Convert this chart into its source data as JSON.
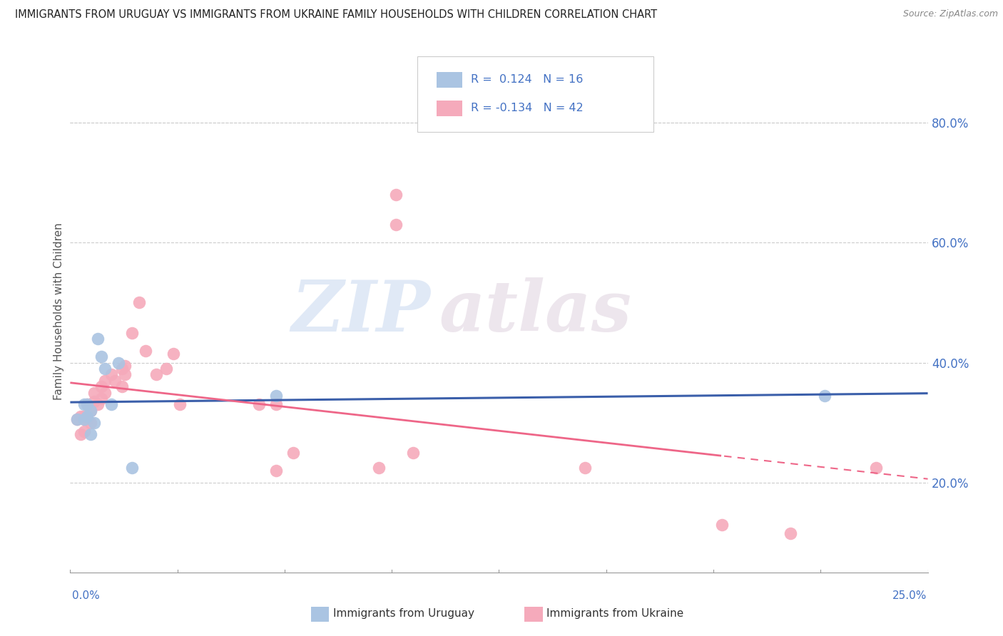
{
  "title": "IMMIGRANTS FROM URUGUAY VS IMMIGRANTS FROM UKRAINE FAMILY HOUSEHOLDS WITH CHILDREN CORRELATION CHART",
  "source": "Source: ZipAtlas.com",
  "ylabel": "Family Households with Children",
  "ytick_values": [
    0.2,
    0.4,
    0.6,
    0.8
  ],
  "xlim": [
    0.0,
    0.25
  ],
  "ylim": [
    0.05,
    0.92
  ],
  "watermark_zip": "ZIP",
  "watermark_atlas": "atlas",
  "legend_R_uruguay": "0.124",
  "legend_N_uruguay": "16",
  "legend_R_ukraine": "-0.134",
  "legend_N_ukraine": "42",
  "uruguay_color": "#aac4e2",
  "ukraine_color": "#f5aabb",
  "uruguay_line_color": "#3b5faa",
  "ukraine_line_color": "#ee6688",
  "title_color": "#222222",
  "axis_label_color": "#4472c4",
  "source_color": "#888888",
  "uruguay_scatter_x": [
    0.002,
    0.004,
    0.004,
    0.005,
    0.005,
    0.006,
    0.006,
    0.007,
    0.008,
    0.009,
    0.01,
    0.012,
    0.014,
    0.018,
    0.06,
    0.22
  ],
  "uruguay_scatter_y": [
    0.305,
    0.33,
    0.305,
    0.33,
    0.31,
    0.32,
    0.28,
    0.3,
    0.44,
    0.41,
    0.39,
    0.33,
    0.4,
    0.225,
    0.345,
    0.345
  ],
  "ukraine_scatter_x": [
    0.002,
    0.003,
    0.003,
    0.004,
    0.004,
    0.004,
    0.005,
    0.005,
    0.006,
    0.006,
    0.007,
    0.007,
    0.008,
    0.009,
    0.009,
    0.01,
    0.01,
    0.012,
    0.013,
    0.015,
    0.015,
    0.016,
    0.016,
    0.018,
    0.02,
    0.022,
    0.025,
    0.028,
    0.03,
    0.032,
    0.055,
    0.06,
    0.06,
    0.065,
    0.09,
    0.095,
    0.095,
    0.1,
    0.15,
    0.19,
    0.21,
    0.235
  ],
  "ukraine_scatter_y": [
    0.305,
    0.31,
    0.28,
    0.31,
    0.285,
    0.305,
    0.33,
    0.305,
    0.32,
    0.3,
    0.335,
    0.35,
    0.33,
    0.34,
    0.36,
    0.37,
    0.35,
    0.38,
    0.37,
    0.39,
    0.36,
    0.395,
    0.38,
    0.45,
    0.5,
    0.42,
    0.38,
    0.39,
    0.415,
    0.33,
    0.33,
    0.33,
    0.22,
    0.25,
    0.225,
    0.68,
    0.63,
    0.25,
    0.225,
    0.13,
    0.115,
    0.225
  ]
}
